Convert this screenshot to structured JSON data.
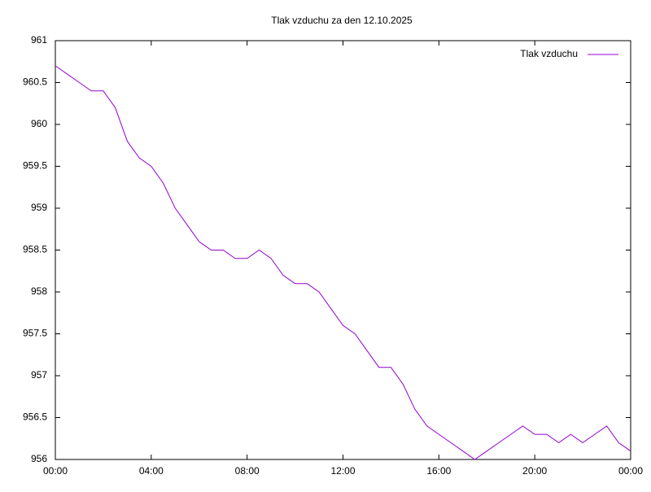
{
  "chart_data": {
    "type": "line",
    "title": "Tlak vzduchu za den 12.10.2025",
    "x": [
      0,
      0.5,
      1,
      1.5,
      2,
      2.5,
      3,
      3.5,
      4,
      4.5,
      5,
      5.5,
      6,
      6.5,
      7,
      7.5,
      8,
      8.5,
      9,
      9.5,
      10,
      10.5,
      11,
      11.5,
      12,
      12.5,
      13,
      13.5,
      14,
      14.5,
      15,
      15.5,
      16,
      16.5,
      17,
      17.5,
      18,
      18.5,
      19,
      19.5,
      20,
      20.5,
      21,
      21.5,
      22,
      22.5,
      23,
      23.5,
      24
    ],
    "series": [
      {
        "name": "Tlak vzduchu",
        "color": "#9400d3",
        "values": [
          960.7,
          960.6,
          960.5,
          960.4,
          960.4,
          960.2,
          959.8,
          959.6,
          959.5,
          959.3,
          959.0,
          958.8,
          958.6,
          958.5,
          958.5,
          958.4,
          958.4,
          958.5,
          958.4,
          958.2,
          958.1,
          958.1,
          958.0,
          957.8,
          957.6,
          957.5,
          957.3,
          957.1,
          957.1,
          956.9,
          956.6,
          956.4,
          956.3,
          956.2,
          956.1,
          956.0,
          956.1,
          956.2,
          956.3,
          956.4,
          956.3,
          956.3,
          956.2,
          956.3,
          956.2,
          956.3,
          956.4,
          956.2,
          956.1
        ]
      }
    ],
    "xlim": [
      0,
      24
    ],
    "xticks": [
      {
        "value": 0,
        "label": "00:00"
      },
      {
        "value": 4,
        "label": "04:00"
      },
      {
        "value": 8,
        "label": "08:00"
      },
      {
        "value": 12,
        "label": "12:00"
      },
      {
        "value": 16,
        "label": "16:00"
      },
      {
        "value": 20,
        "label": "20:00"
      },
      {
        "value": 24,
        "label": "00:00"
      }
    ],
    "ylim": [
      956,
      961
    ],
    "yticks": [
      956,
      956.5,
      957,
      957.5,
      958,
      958.5,
      959,
      959.5,
      960,
      960.5,
      961
    ],
    "legend": "top-right"
  }
}
